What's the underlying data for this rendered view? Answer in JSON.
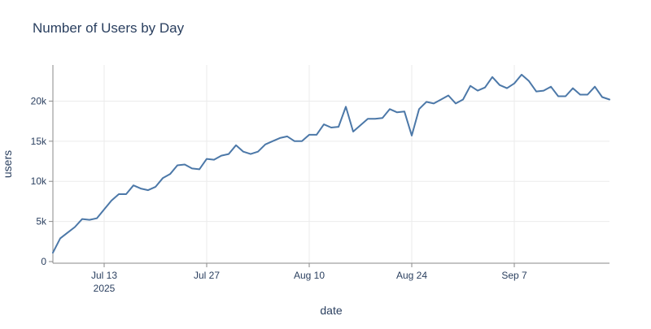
{
  "chart_data": {
    "type": "line",
    "title": "Number of Users by Day",
    "xlabel": "date",
    "ylabel": "users",
    "x_range": [
      "2025-07-06",
      "2025-09-20"
    ],
    "ylim": [
      0,
      24500
    ],
    "grid": true,
    "legend": "none",
    "line_color": "#4c78a8",
    "x_ticks": [
      {
        "date": "2025-07-13",
        "label": "Jul 13",
        "sublabel": "2025"
      },
      {
        "date": "2025-07-27",
        "label": "Jul 27",
        "sublabel": ""
      },
      {
        "date": "2025-08-10",
        "label": "Aug 10",
        "sublabel": ""
      },
      {
        "date": "2025-08-24",
        "label": "Aug 24",
        "sublabel": ""
      },
      {
        "date": "2025-09-07",
        "label": "Sep 7",
        "sublabel": ""
      }
    ],
    "y_ticks": [
      {
        "value": 0,
        "label": "0"
      },
      {
        "value": 5000,
        "label": "5k"
      },
      {
        "value": 10000,
        "label": "10k"
      },
      {
        "value": 15000,
        "label": "15k"
      },
      {
        "value": 20000,
        "label": "20k"
      }
    ],
    "series": [
      {
        "values": [
          [
            "2025-07-06",
            1100
          ],
          [
            "2025-07-07",
            2900
          ],
          [
            "2025-07-08",
            3600
          ],
          [
            "2025-07-09",
            4300
          ],
          [
            "2025-07-10",
            5300
          ],
          [
            "2025-07-11",
            5200
          ],
          [
            "2025-07-12",
            5400
          ],
          [
            "2025-07-13",
            6500
          ],
          [
            "2025-07-14",
            7600
          ],
          [
            "2025-07-15",
            8400
          ],
          [
            "2025-07-16",
            8400
          ],
          [
            "2025-07-17",
            9500
          ],
          [
            "2025-07-18",
            9100
          ],
          [
            "2025-07-19",
            8900
          ],
          [
            "2025-07-20",
            9300
          ],
          [
            "2025-07-21",
            10400
          ],
          [
            "2025-07-22",
            10900
          ],
          [
            "2025-07-23",
            12000
          ],
          [
            "2025-07-24",
            12100
          ],
          [
            "2025-07-25",
            11600
          ],
          [
            "2025-07-26",
            11500
          ],
          [
            "2025-07-27",
            12800
          ],
          [
            "2025-07-28",
            12700
          ],
          [
            "2025-07-29",
            13200
          ],
          [
            "2025-07-30",
            13400
          ],
          [
            "2025-07-31",
            14500
          ],
          [
            "2025-08-01",
            13700
          ],
          [
            "2025-08-02",
            13400
          ],
          [
            "2025-08-03",
            13700
          ],
          [
            "2025-08-04",
            14600
          ],
          [
            "2025-08-05",
            15000
          ],
          [
            "2025-08-06",
            15400
          ],
          [
            "2025-08-07",
            15600
          ],
          [
            "2025-08-08",
            15000
          ],
          [
            "2025-08-09",
            15000
          ],
          [
            "2025-08-10",
            15800
          ],
          [
            "2025-08-11",
            15800
          ],
          [
            "2025-08-12",
            17100
          ],
          [
            "2025-08-13",
            16700
          ],
          [
            "2025-08-14",
            16800
          ],
          [
            "2025-08-15",
            19300
          ],
          [
            "2025-08-16",
            16200
          ],
          [
            "2025-08-17",
            17000
          ],
          [
            "2025-08-18",
            17800
          ],
          [
            "2025-08-19",
            17800
          ],
          [
            "2025-08-20",
            17900
          ],
          [
            "2025-08-21",
            19000
          ],
          [
            "2025-08-22",
            18600
          ],
          [
            "2025-08-23",
            18700
          ],
          [
            "2025-08-24",
            15700
          ],
          [
            "2025-08-25",
            19000
          ],
          [
            "2025-08-26",
            19900
          ],
          [
            "2025-08-27",
            19700
          ],
          [
            "2025-08-28",
            20200
          ],
          [
            "2025-08-29",
            20700
          ],
          [
            "2025-08-30",
            19700
          ],
          [
            "2025-08-31",
            20200
          ],
          [
            "2025-09-01",
            21900
          ],
          [
            "2025-09-02",
            21300
          ],
          [
            "2025-09-03",
            21700
          ],
          [
            "2025-09-04",
            23000
          ],
          [
            "2025-09-05",
            22000
          ],
          [
            "2025-09-06",
            21600
          ],
          [
            "2025-09-07",
            22200
          ],
          [
            "2025-09-08",
            23300
          ],
          [
            "2025-09-09",
            22500
          ],
          [
            "2025-09-10",
            21200
          ],
          [
            "2025-09-11",
            21300
          ],
          [
            "2025-09-12",
            21800
          ],
          [
            "2025-09-13",
            20600
          ],
          [
            "2025-09-14",
            20600
          ],
          [
            "2025-09-15",
            21600
          ],
          [
            "2025-09-16",
            20800
          ],
          [
            "2025-09-17",
            20800
          ],
          [
            "2025-09-18",
            21800
          ],
          [
            "2025-09-19",
            20500
          ],
          [
            "2025-09-20",
            20200
          ]
        ]
      }
    ]
  }
}
